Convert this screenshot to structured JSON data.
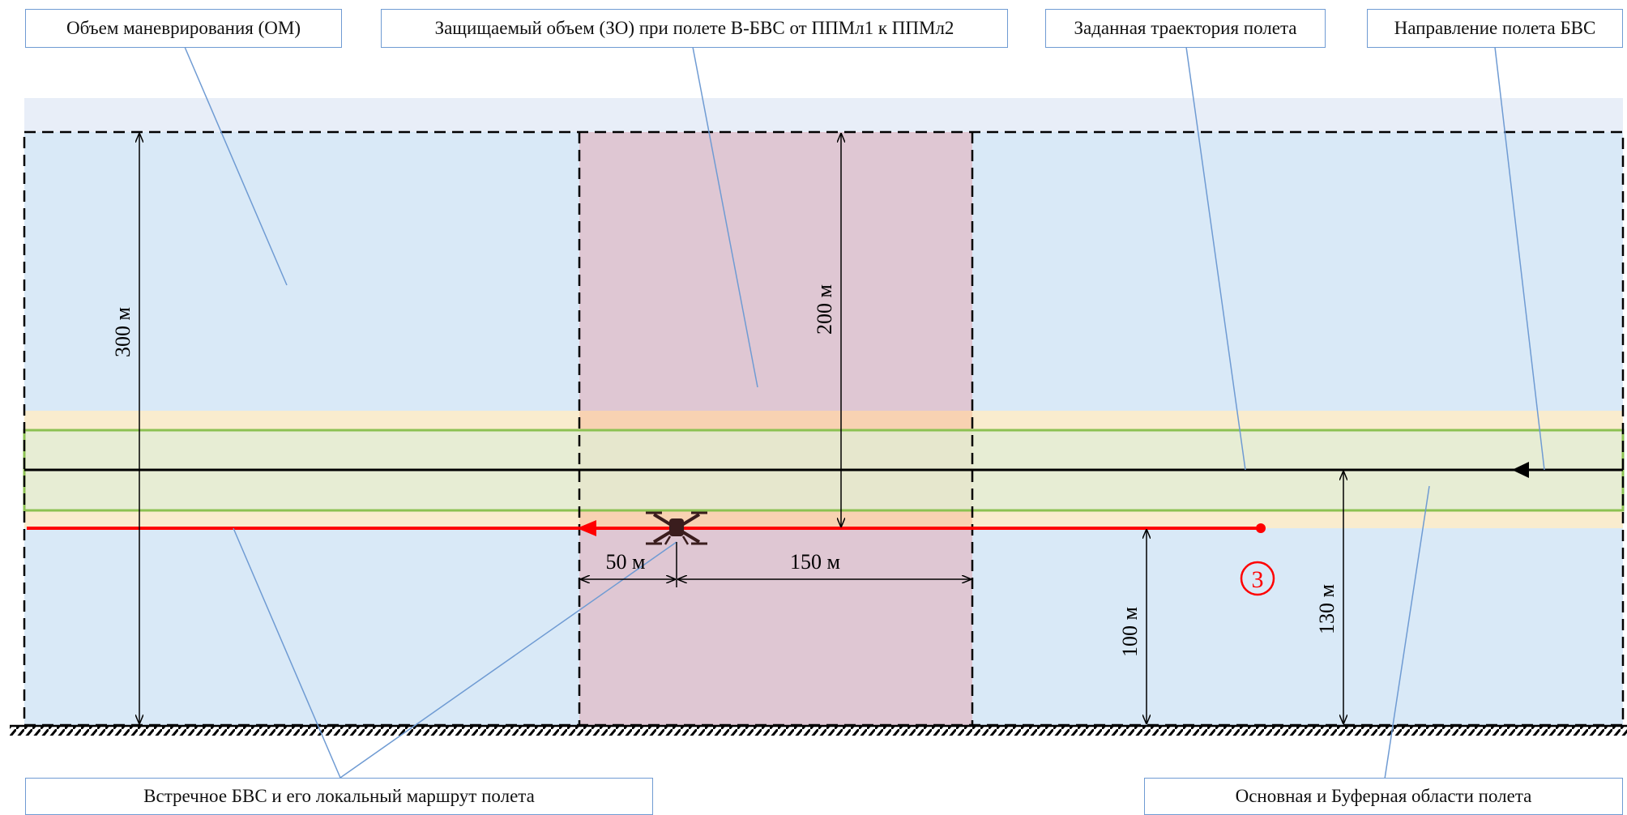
{
  "callouts": {
    "maneuver": "Объем маневрирования (ОМ)",
    "protected": "Защищаемый объем (ЗО) при полете В-БВС от ППМл1 к ППМл2",
    "trajectory": "Заданная траектория полета",
    "direction": "Направление полета БВС",
    "oncoming": "Встречное БВС и его локальный маршрут полета",
    "areas": "Основная и Буферная области полета"
  },
  "dimensions": {
    "d300": "300 м",
    "d200": "200 м",
    "d50": "50 м",
    "d150": "150 м",
    "d100": "100 м",
    "d130": "130 м"
  },
  "marker": "3",
  "colors": {
    "maneuver_fill": "#d9e9f7",
    "protected_fill": "#dfc7d3",
    "buffer_fill": "#fcecc9",
    "main_fill": "#e0eed5",
    "main_border": "#8cc152",
    "top_band": "#e8eef8",
    "route_red": "#ff0000",
    "leader_line": "#6f9bd3"
  }
}
